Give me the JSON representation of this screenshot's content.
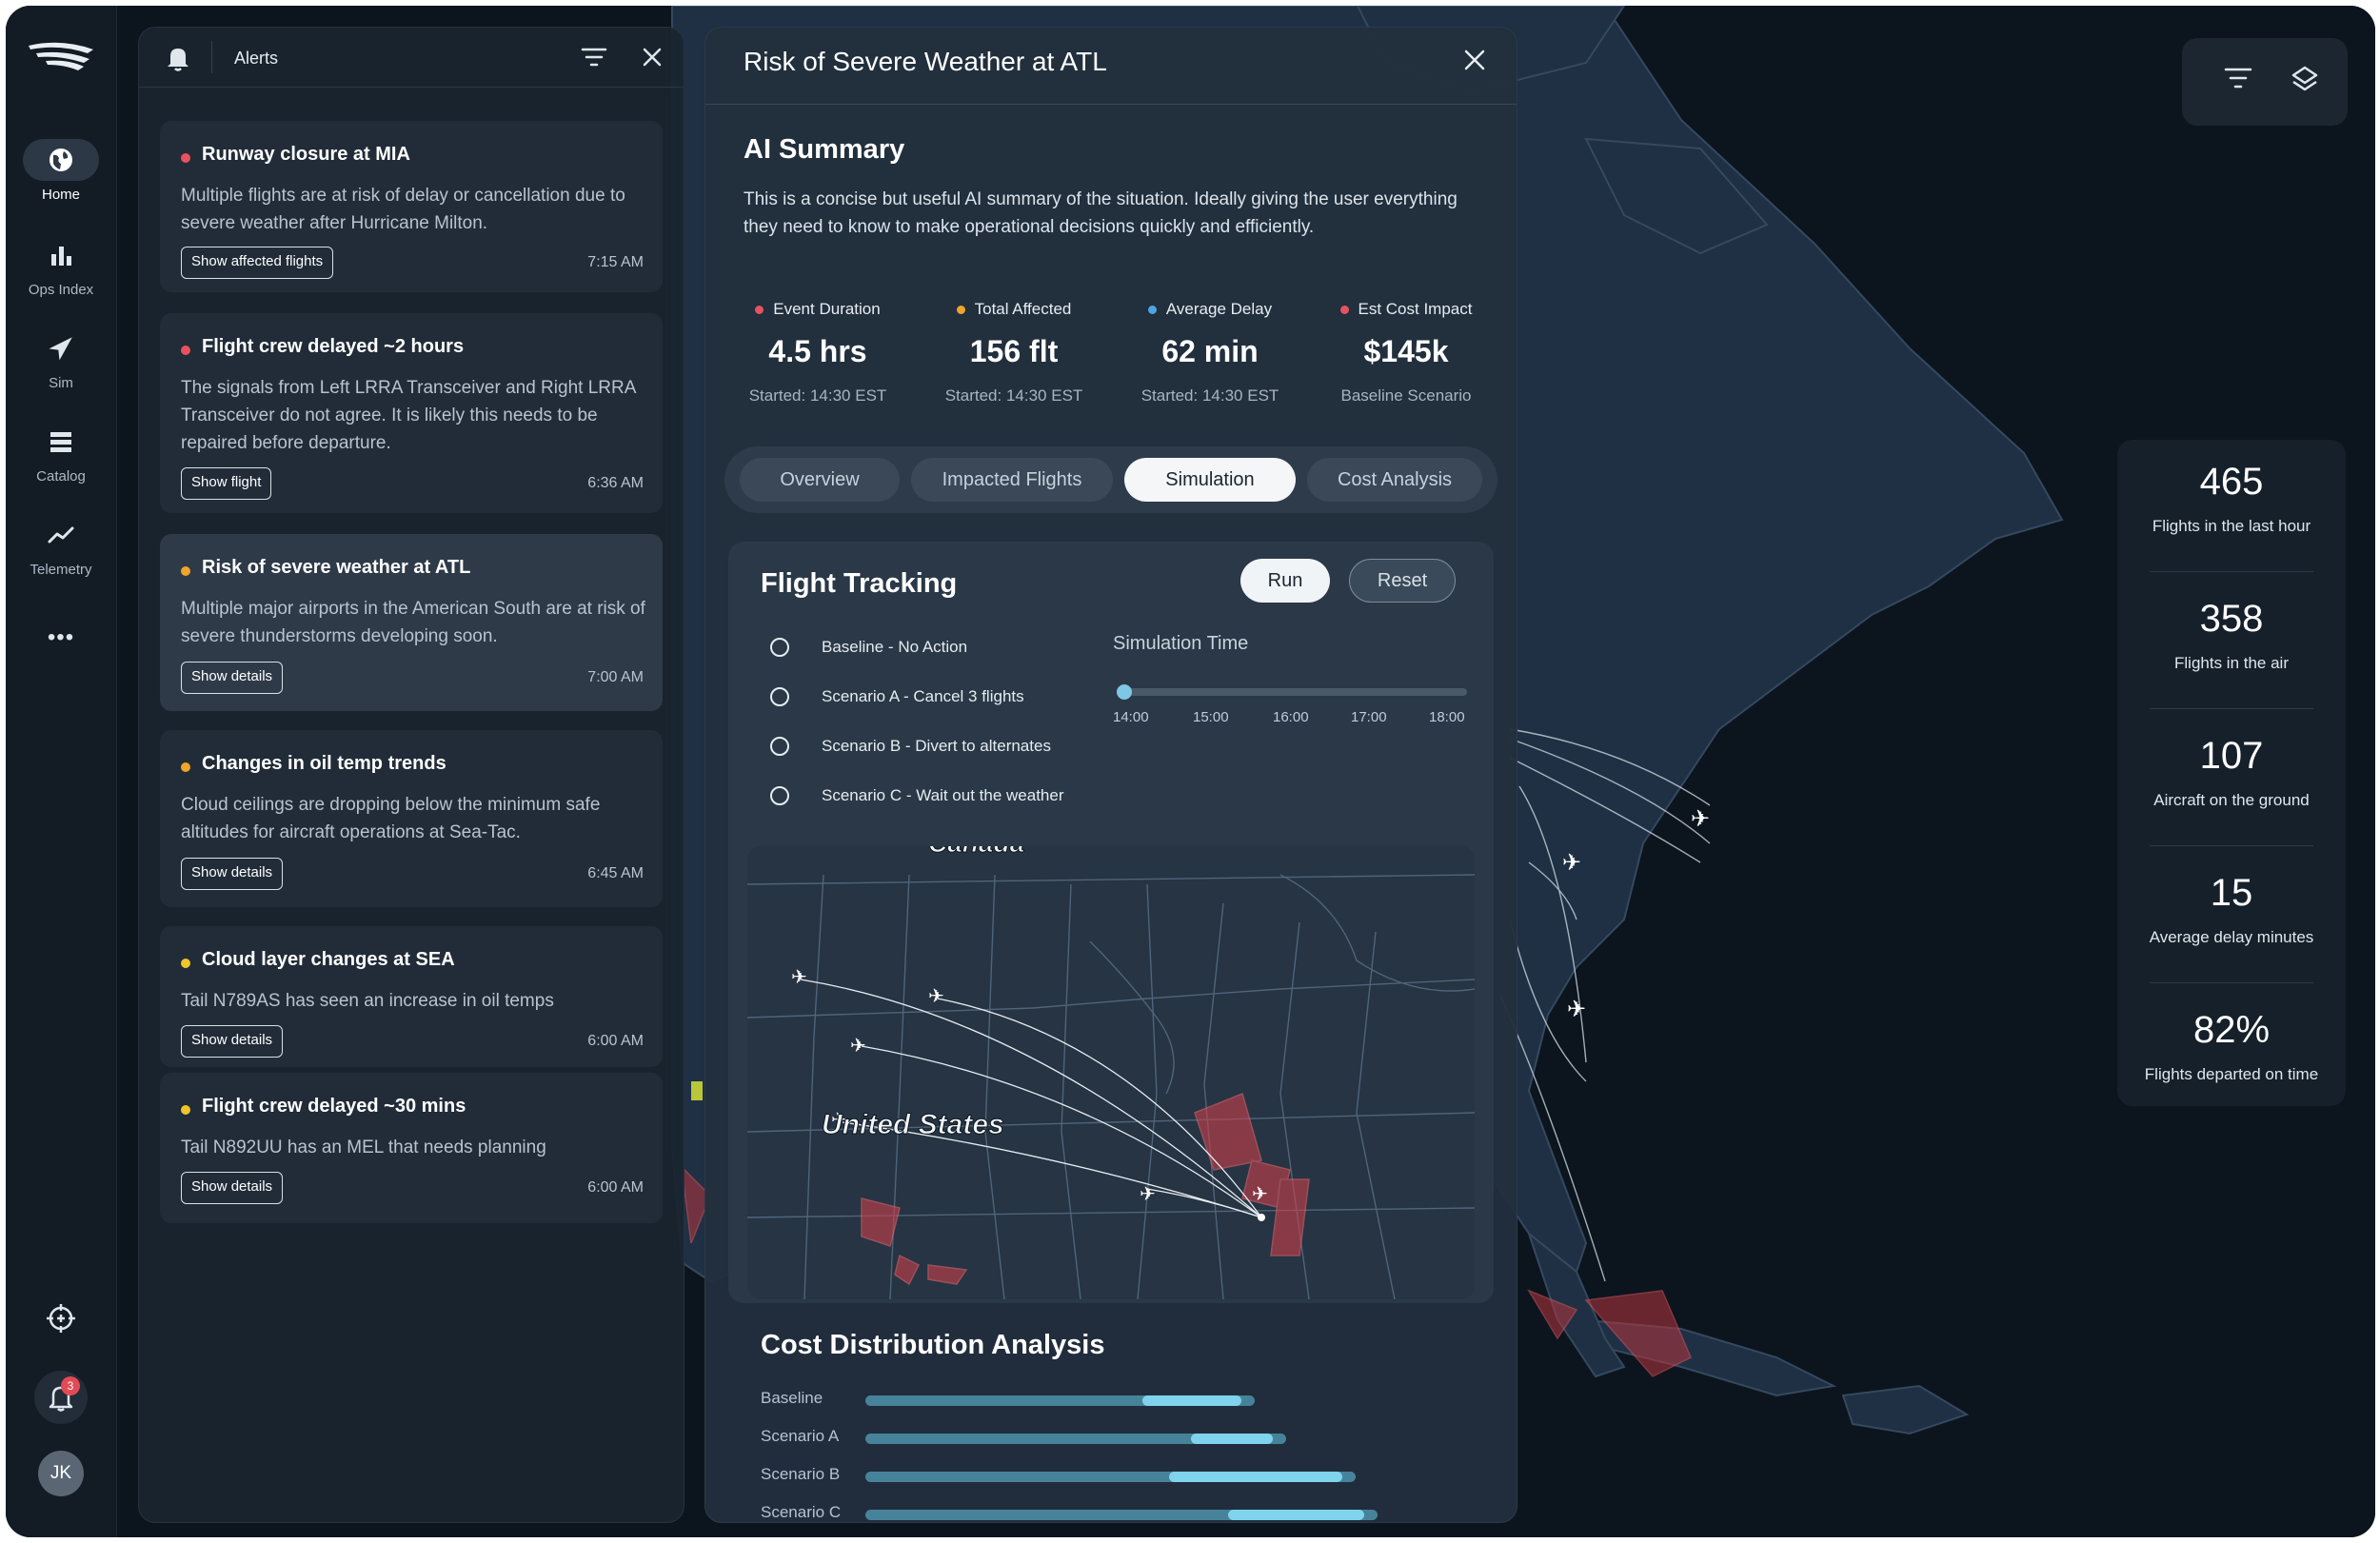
{
  "nav": {
    "items": [
      {
        "label": "Home",
        "icon": "globe-icon"
      },
      {
        "label": "Ops Index",
        "icon": "bar-chart-icon"
      },
      {
        "label": "Sim",
        "icon": "airplane-icon"
      },
      {
        "label": "Catalog",
        "icon": "stack-icon"
      },
      {
        "label": "Telemetry",
        "icon": "trend-line-icon"
      }
    ],
    "more": "•••",
    "notification_count": "3",
    "avatar_initials": "JK"
  },
  "alerts": {
    "title": "Alerts",
    "items": [
      {
        "title": "Runway closure at MIA",
        "severity_color": "#e8525e",
        "body": "Multiple flights are at risk of delay or cancellation due to severe weather after Hurricane Milton.",
        "button": "Show affected flights",
        "time": "7:15 AM"
      },
      {
        "title": "Flight crew delayed ~2 hours",
        "severity_color": "#e8525e",
        "body": "The signals from Left LRRA Transceiver and Right LRRA Transceiver do not agree. It is likely this needs to be repaired before departure.",
        "button": "Show flight",
        "time": "6:36 AM"
      },
      {
        "title": "Risk of severe weather at ATL",
        "severity_color": "#f0a52a",
        "body": "Multiple major airports in the American South are at risk of severe thunderstorms developing soon.",
        "button": "Show details",
        "time": "7:00 AM"
      },
      {
        "title": "Changes in oil temp trends",
        "severity_color": "#f0a52a",
        "body": "Cloud ceilings are dropping below the minimum safe altitudes for aircraft operations at Sea-Tac.",
        "button": "Show details",
        "time": "6:45 AM"
      },
      {
        "title": "Cloud layer changes at SEA",
        "severity_color": "#f0c52a",
        "body": "Tail N789AS has seen an increase in oil temps",
        "button": "Show details",
        "time": "6:00 AM"
      },
      {
        "title": "Flight crew delayed ~30 mins",
        "severity_color": "#f0c52a",
        "body": "Tail N892UU has an MEL that needs planning",
        "button": "Show details",
        "time": "6:00 AM"
      }
    ]
  },
  "detail": {
    "title": "Risk of Severe Weather at ATL",
    "ai_title": "AI Summary",
    "ai_text": "This is a concise but useful AI summary of the situation. Ideally giving the user everything they need to know to make operational decisions quickly and efficiently.",
    "stats": [
      {
        "label": "Event Duration",
        "value": "4.5 hrs",
        "sub": "Started: 14:30 EST",
        "color": "#e8525e"
      },
      {
        "label": "Total Affected",
        "value": "156 flt",
        "sub": "Started: 14:30 EST",
        "color": "#f0a52a"
      },
      {
        "label": "Average Delay",
        "value": "62 min",
        "sub": "Started: 14:30 EST",
        "color": "#4ea6e0"
      },
      {
        "label": "Est Cost Impact",
        "value": "$145k",
        "sub": "Baseline Scenario",
        "color": "#e8525e"
      }
    ],
    "tabs": [
      "Overview",
      "Impacted Flights",
      "Simulation",
      "Cost Analysis"
    ],
    "active_tab": "Simulation",
    "tracking": {
      "title": "Flight Tracking",
      "run": "Run",
      "reset": "Reset",
      "scenarios": [
        "Baseline - No Action",
        "Scenario A - Cancel 3 flights",
        "Scenario B - Divert to alternates",
        "Scenario C - Wait out the weather"
      ],
      "sim_title": "Simulation Time",
      "sim_ticks": [
        "14:00",
        "15:00",
        "16:00",
        "17:00",
        "18:00"
      ],
      "sim_value": "14:00",
      "map_labels": {
        "north": "Canada",
        "country": "United States"
      }
    },
    "cost": {
      "title": "Cost Distribution Analysis",
      "rows": [
        {
          "label": "Baseline",
          "total": 0.73,
          "highlight_start": 0.52
        },
        {
          "label": "Scenario A",
          "total": 0.79,
          "highlight_start": 0.61
        },
        {
          "label": "Scenario B",
          "total": 0.92,
          "highlight_start": 0.57
        },
        {
          "label": "Scenario C",
          "total": 0.96,
          "highlight_start": 0.68
        }
      ]
    }
  },
  "kpis": [
    {
      "value": "465",
      "label": "Flights in the last hour"
    },
    {
      "value": "358",
      "label": "Flights in the air"
    },
    {
      "value": "107",
      "label": "Aircraft on the ground"
    },
    {
      "value": "15",
      "label": "Average delay minutes"
    },
    {
      "value": "82%",
      "label": "Flights departed on time"
    }
  ],
  "colors": {
    "accent": "#7fd3ec",
    "background": "#0b121a",
    "storm": "#c8404a"
  }
}
